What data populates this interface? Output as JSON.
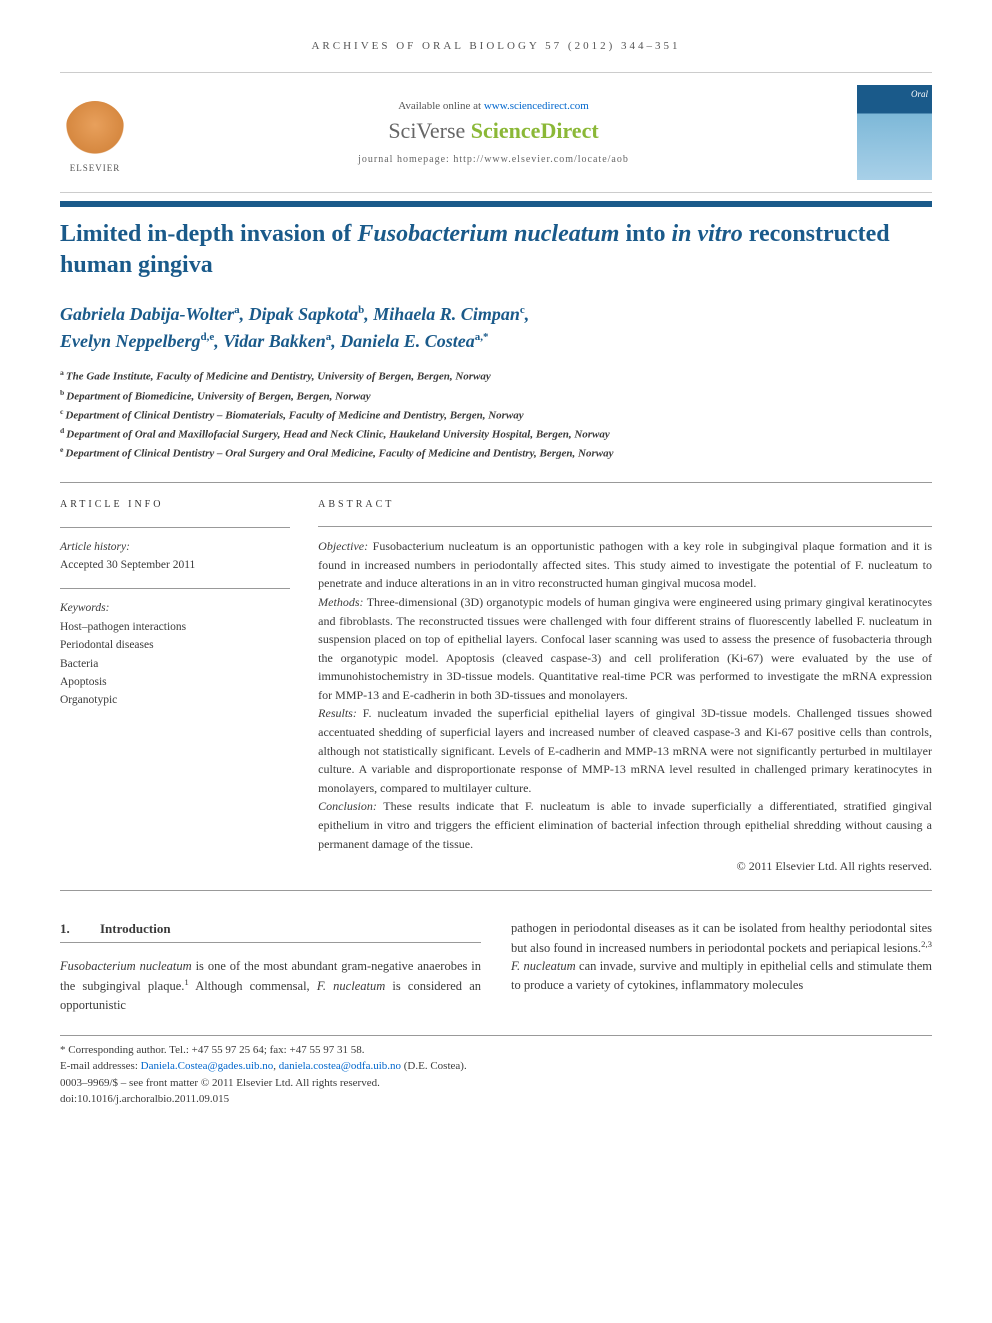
{
  "journal_header": "ARCHIVES OF ORAL BIOLOGY 57 (2012) 344–351",
  "banner": {
    "available_prefix": "Available online at ",
    "available_url": "www.sciencedirect.com",
    "sciverse_prefix": "SciVerse ",
    "sciverse_main": "ScienceDirect",
    "homepage_label": "journal homepage: http://www.elsevier.com/locate/aob",
    "elsevier_label": "ELSEVIER",
    "cover_title": "Oral"
  },
  "title_parts": {
    "p1": "Limited in-depth invasion of ",
    "p2": "Fusobacterium nucleatum",
    "p3": " into ",
    "p4": "in vitro",
    "p5": " reconstructed human gingiva"
  },
  "authors": [
    {
      "name": "Gabriela Dabija-Wolter",
      "sup": "a"
    },
    {
      "name": "Dipak Sapkota",
      "sup": "b"
    },
    {
      "name": "Mihaela R. Cimpan",
      "sup": "c"
    },
    {
      "name": "Evelyn Neppelberg",
      "sup": "d,e"
    },
    {
      "name": "Vidar Bakken",
      "sup": "a"
    },
    {
      "name": "Daniela E. Costea",
      "sup": "a,*"
    }
  ],
  "affiliations": [
    {
      "sup": "a",
      "text": "The Gade Institute, Faculty of Medicine and Dentistry, University of Bergen, Bergen, Norway"
    },
    {
      "sup": "b",
      "text": "Department of Biomedicine, University of Bergen, Bergen, Norway"
    },
    {
      "sup": "c",
      "text": "Department of Clinical Dentistry – Biomaterials, Faculty of Medicine and Dentistry, Bergen, Norway"
    },
    {
      "sup": "d",
      "text": "Department of Oral and Maxillofacial Surgery, Head and Neck Clinic, Haukeland University Hospital, Bergen, Norway"
    },
    {
      "sup": "e",
      "text": "Department of Clinical Dentistry – Oral Surgery and Oral Medicine, Faculty of Medicine and Dentistry, Bergen, Norway"
    }
  ],
  "article_info": {
    "heading": "ARTICLE INFO",
    "history_label": "Article history:",
    "accepted": "Accepted 30 September 2011",
    "keywords_label": "Keywords:",
    "keywords": [
      "Host–pathogen interactions",
      "Periodontal diseases",
      "Bacteria",
      "Apoptosis",
      "Organotypic"
    ]
  },
  "abstract": {
    "heading": "ABSTRACT",
    "objective_label": "Objective: ",
    "objective": "Fusobacterium nucleatum is an opportunistic pathogen with a key role in subgingival plaque formation and it is found in increased numbers in periodontally affected sites. This study aimed to investigate the potential of F. nucleatum to penetrate and induce alterations in an in vitro reconstructed human gingival mucosa model.",
    "methods_label": "Methods: ",
    "methods": "Three-dimensional (3D) organotypic models of human gingiva were engineered using primary gingival keratinocytes and fibroblasts. The reconstructed tissues were challenged with four different strains of fluorescently labelled F. nucleatum in suspension placed on top of epithelial layers. Confocal laser scanning was used to assess the presence of fusobacteria through the organotypic model. Apoptosis (cleaved caspase-3) and cell proliferation (Ki-67) were evaluated by the use of immunohistochemistry in 3D-tissue models. Quantitative real-time PCR was performed to investigate the mRNA expression for MMP-13 and E-cadherin in both 3D-tissues and monolayers.",
    "results_label": "Results: ",
    "results": "F. nucleatum invaded the superficial epithelial layers of gingival 3D-tissue models. Challenged tissues showed accentuated shedding of superficial layers and increased number of cleaved caspase-3 and Ki-67 positive cells than controls, although not statistically significant. Levels of E-cadherin and MMP-13 mRNA were not significantly perturbed in multilayer culture. A variable and disproportionate response of MMP-13 mRNA level resulted in challenged primary keratinocytes in monolayers, compared to multilayer culture.",
    "conclusion_label": "Conclusion: ",
    "conclusion": "These results indicate that F. nucleatum is able to invade superficially a differentiated, stratified gingival epithelium in vitro and triggers the efficient elimination of bacterial infection through epithelial shredding without causing a permanent damage of the tissue.",
    "copyright": "© 2011 Elsevier Ltd. All rights reserved."
  },
  "body": {
    "section_num": "1.",
    "section_title": "Introduction",
    "col1_p1_a": "Fusobacterium nucleatum",
    "col1_p1_b": " is one of the most abundant gram-negative anaerobes in the subgingival plaque.",
    "col1_p1_c": " Although commensal, ",
    "col1_p1_d": "F. nucleatum",
    "col1_p1_e": " is considered an opportunistic",
    "col2_p1_a": "pathogen in periodontal diseases as it can be isolated from healthy periodontal sites but also found in increased numbers in periodontal pockets and periapical lesions.",
    "col2_p1_b": " F. nucleatum",
    "col2_p1_c": " can invade, survive and multiply in epithelial cells and stimulate them to produce a variety of cytokines, inflammatory molecules",
    "ref1": "1",
    "ref23": "2,3"
  },
  "footer": {
    "corr": "* Corresponding author. Tel.: +47 55 97 25 64; fax: +47 55 97 31 58.",
    "email_label": "E-mail addresses: ",
    "email1": "Daniela.Costea@gades.uib.no",
    "email_sep": ", ",
    "email2": "daniela.costea@odfa.uib.no",
    "email_name": " (D.E. Costea).",
    "issn": "0003–9969/$ – see front matter © 2011 Elsevier Ltd. All rights reserved.",
    "doi": "doi:10.1016/j.archoralbio.2011.09.015"
  },
  "colors": {
    "brand_blue": "#1a5a8a",
    "sciverse_green": "#8bb837",
    "link_blue": "#0066cc",
    "text": "#3a3a3a"
  }
}
